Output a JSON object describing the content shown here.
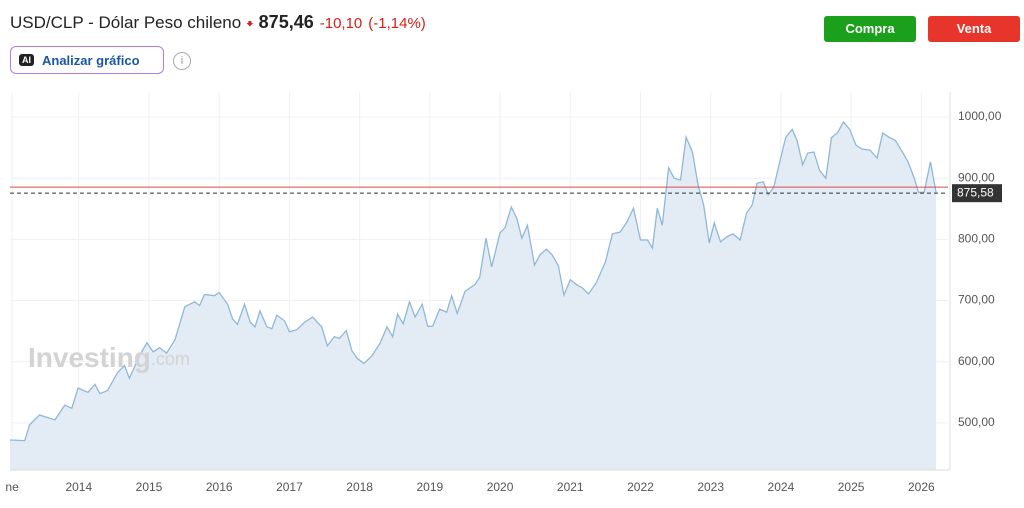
{
  "header": {
    "symbol": "USD/CLP - Dólar Peso chileno",
    "price": "875,46",
    "change": "-10,10",
    "change_pct": "(-1,14%)",
    "ai_icon": "AI",
    "analyze_button": "Analizar gráfico",
    "info_icon": "i",
    "buy_button": "Compra",
    "sell_button": "Venta",
    "watermark": "Investing",
    "watermark_suffix": ".com"
  },
  "chart_data": {
    "type": "area",
    "color": "#8fb8d8",
    "fill": "#e3ecf5",
    "xlim": [
      2013.02,
      2026.38
    ],
    "ylim": [
      423,
      1041
    ],
    "xticks": [
      {
        "value": 2013.05,
        "label": "ne"
      },
      2014,
      2015,
      2016,
      2017,
      2018,
      2019,
      2020,
      2021,
      2022,
      2023,
      2024,
      2025,
      2026
    ],
    "yticks": [
      {
        "value": 500,
        "label": "500,00"
      },
      {
        "value": 600,
        "label": "600,00"
      },
      {
        "value": 700,
        "label": "700,00"
      },
      {
        "value": 800,
        "label": "800,00"
      },
      {
        "value": 900,
        "label": "900,00"
      },
      {
        "value": 1000,
        "label": "1000,00"
      }
    ],
    "grid": true,
    "reference_line": {
      "value": 885.56,
      "color": "#e0474c"
    },
    "last_price": {
      "value": 875.58,
      "label": "875,58",
      "color": "#333333"
    },
    "x": [
      2013.02,
      2013.23,
      2013.3,
      2013.44,
      2013.66,
      2013.8,
      2013.9,
      2013.99,
      2014.13,
      2014.23,
      2014.3,
      2014.41,
      2014.55,
      2014.65,
      2014.72,
      2014.87,
      2014.97,
      2015.06,
      2015.15,
      2015.25,
      2015.37,
      2015.51,
      2015.65,
      2015.72,
      2015.79,
      2015.93,
      2016.0,
      2016.12,
      2016.19,
      2016.26,
      2016.36,
      2016.44,
      2016.51,
      2016.58,
      2016.68,
      2016.75,
      2016.82,
      2016.93,
      2017.0,
      2017.1,
      2017.22,
      2017.33,
      2017.46,
      2017.54,
      2017.64,
      2017.71,
      2017.81,
      2017.89,
      2017.97,
      2018.06,
      2018.17,
      2018.29,
      2018.39,
      2018.47,
      2018.54,
      2018.62,
      2018.71,
      2018.79,
      2018.89,
      2018.97,
      2019.04,
      2019.14,
      2019.24,
      2019.31,
      2019.39,
      2019.5,
      2019.64,
      2019.71,
      2019.8,
      2019.88,
      2020.0,
      2020.07,
      2020.16,
      2020.24,
      2020.31,
      2020.39,
      2020.49,
      2020.57,
      2020.66,
      2020.74,
      2020.83,
      2020.91,
      2021.0,
      2021.09,
      2021.17,
      2021.26,
      2021.37,
      2021.5,
      2021.6,
      2021.71,
      2021.81,
      2021.9,
      2022.0,
      2022.1,
      2022.17,
      2022.24,
      2022.31,
      2022.4,
      2022.48,
      2022.57,
      2022.65,
      2022.74,
      2022.82,
      2022.9,
      2022.98,
      2023.05,
      2023.14,
      2023.24,
      2023.32,
      2023.42,
      2023.51,
      2023.59,
      2023.66,
      2023.75,
      2023.82,
      2023.9,
      2023.99,
      2024.07,
      2024.16,
      2024.23,
      2024.31,
      2024.38,
      2024.47,
      2024.55,
      2024.64,
      2024.72,
      2024.81,
      2024.89,
      2024.98,
      2025.07,
      2025.15,
      2025.27,
      2025.37,
      2025.45,
      2025.54,
      2025.63,
      2025.73,
      2025.81,
      2025.9,
      2025.96,
      2026.04,
      2026.13,
      2026.21
    ],
    "values": [
      472,
      471,
      497,
      513,
      505,
      529,
      524,
      557,
      550,
      563,
      548,
      553,
      582,
      594,
      573,
      611,
      631,
      616,
      623,
      614,
      636,
      690,
      698,
      692,
      710,
      708,
      713,
      694,
      670,
      661,
      694,
      665,
      657,
      683,
      657,
      654,
      676,
      667,
      649,
      652,
      665,
      673,
      657,
      626,
      641,
      638,
      651,
      618,
      605,
      597,
      609,
      630,
      657,
      641,
      678,
      662,
      698,
      673,
      694,
      658,
      658,
      686,
      681,
      708,
      679,
      715,
      726,
      738,
      802,
      755,
      811,
      819,
      853,
      834,
      802,
      823,
      758,
      775,
      784,
      775,
      757,
      709,
      734,
      726,
      721,
      711,
      729,
      763,
      809,
      812,
      829,
      851,
      799,
      799,
      786,
      851,
      823,
      917,
      900,
      897,
      967,
      943,
      889,
      856,
      794,
      827,
      796,
      805,
      809,
      799,
      843,
      856,
      892,
      894,
      873,
      886,
      930,
      967,
      980,
      962,
      922,
      941,
      943,
      913,
      900,
      966,
      975,
      992,
      980,
      954,
      948,
      946,
      933,
      974,
      967,
      962,
      943,
      927,
      900,
      877,
      877,
      927,
      877
    ]
  }
}
